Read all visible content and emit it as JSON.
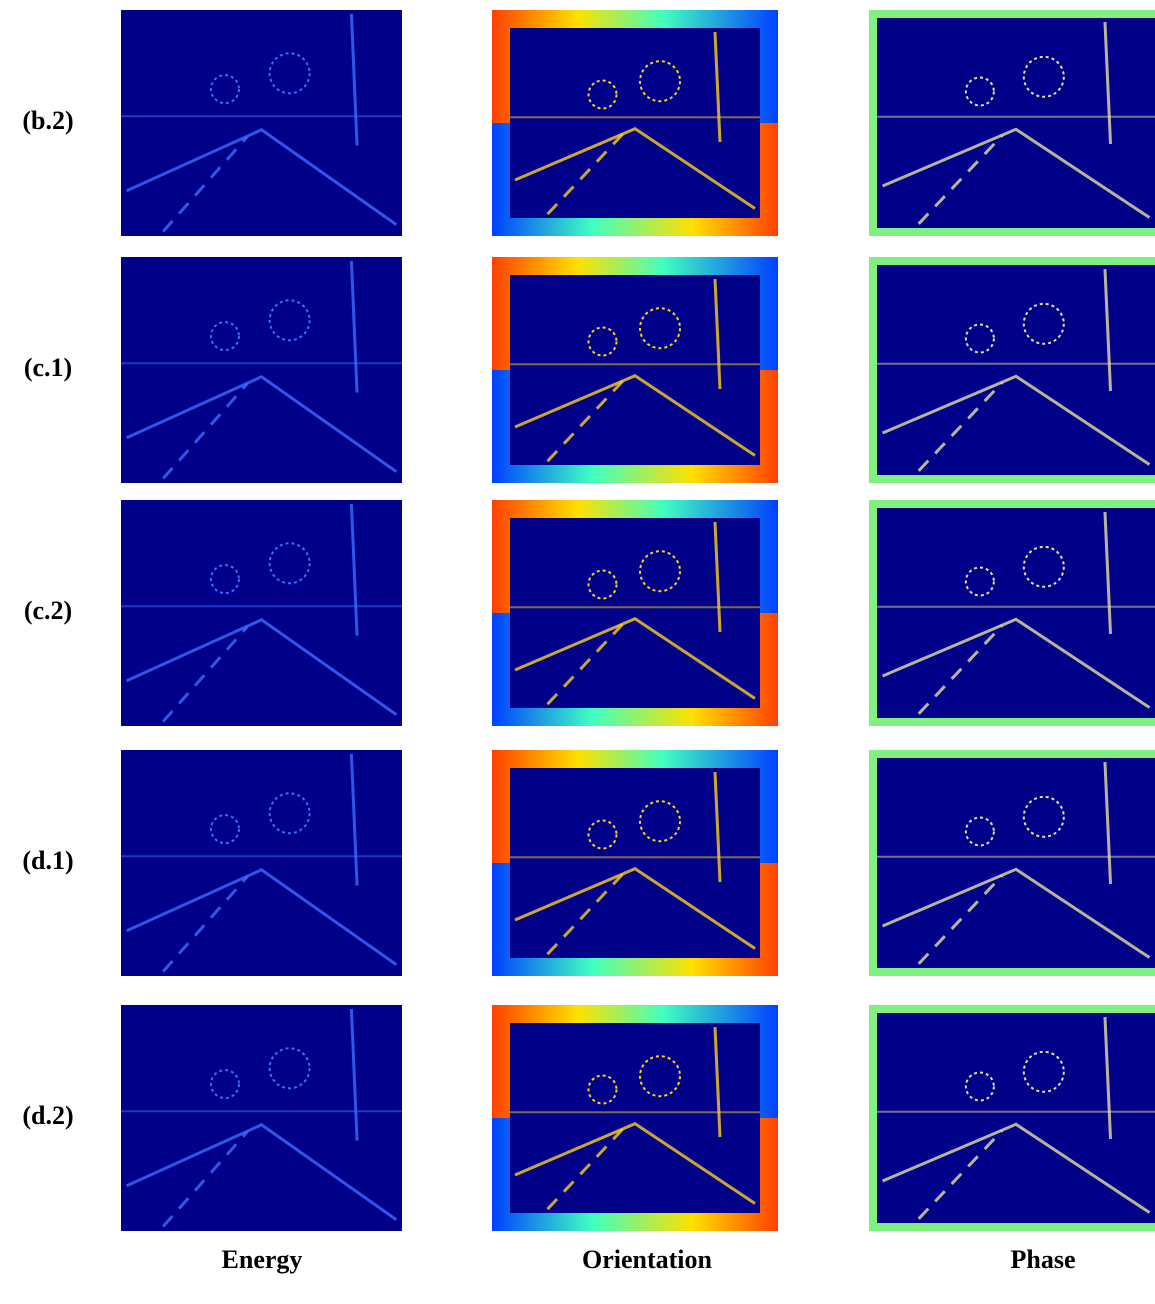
{
  "rows": [
    {
      "label": "(b.2)"
    },
    {
      "label": "(c.1)"
    },
    {
      "label": "(c.2)"
    },
    {
      "label": "(d.1)"
    },
    {
      "label": "(d.2)"
    }
  ],
  "columns": [
    "Energy",
    "Orientation",
    "Phase"
  ]
}
